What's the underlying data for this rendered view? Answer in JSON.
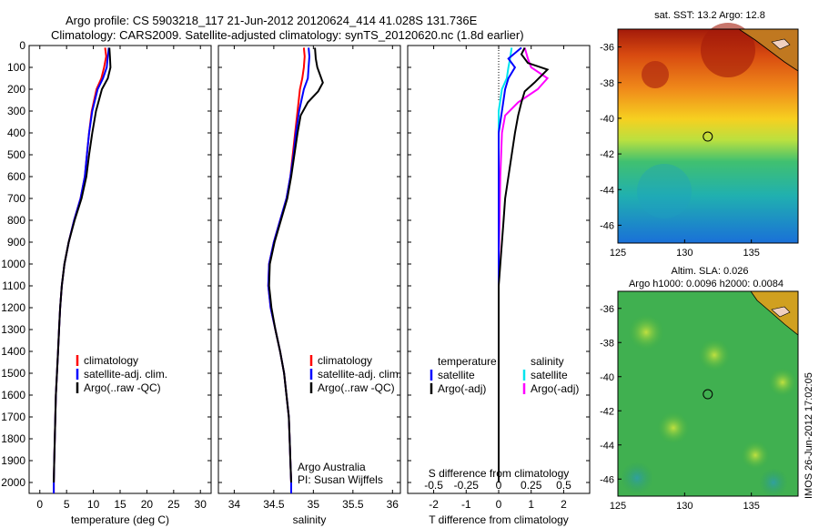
{
  "title_line1": "Argo profile: CS 5903218_117 21-Jun-2012 20120624_414 41.028S 131.736E",
  "title_line2": "Climatology: CARS2009. Satellite-adjusted climatology: synTS_20120620.nc (1.8d earlier)",
  "credit": "Argo Australia",
  "pi": "PI: Susan Wijffels",
  "timestamp": "IMOS 26-Jun-2012 17:02:05",
  "colors": {
    "climatology": "#ff0000",
    "satellite": "#0000ff",
    "argo": "#000000",
    "s_satellite": "#00e5ee",
    "s_argo": "#ff00ff"
  },
  "depth_ticks": [
    0,
    100,
    200,
    300,
    400,
    500,
    600,
    700,
    800,
    900,
    1000,
    1100,
    1200,
    1300,
    1400,
    1500,
    1600,
    1700,
    1800,
    1900,
    2000
  ],
  "chart_data": [
    {
      "type": "line",
      "xlabel": "temperature (deg C)",
      "xlim": [
        -2,
        32
      ],
      "ylim": [
        2050,
        0
      ],
      "x_ticks": [
        "0",
        "5",
        "10",
        "15",
        "20",
        "25",
        "30"
      ],
      "x_tick_values": [
        0,
        5,
        10,
        15,
        20,
        25,
        30
      ],
      "legend": [
        {
          "label": "climatology",
          "color": "#ff0000"
        },
        {
          "label": "satellite-adj. clim.",
          "color": "#0000ff"
        },
        {
          "label": "Argo(..raw -QC)",
          "color": "#000000"
        }
      ],
      "series": [
        {
          "name": "climatology",
          "color": "#ff0000",
          "points": [
            [
              12.2,
              10
            ],
            [
              12.4,
              50
            ],
            [
              12.0,
              100
            ],
            [
              11.5,
              150
            ],
            [
              10.6,
              200
            ],
            [
              9.7,
              300
            ],
            [
              9.2,
              400
            ],
            [
              8.8,
              500
            ],
            [
              8.4,
              600
            ],
            [
              7.6,
              700
            ],
            [
              6.4,
              800
            ],
            [
              5.4,
              900
            ],
            [
              4.6,
              1000
            ],
            [
              4.1,
              1100
            ],
            [
              3.8,
              1200
            ],
            [
              3.6,
              1300
            ],
            [
              3.4,
              1400
            ],
            [
              3.2,
              1500
            ],
            [
              3.0,
              1600
            ],
            [
              2.9,
              1700
            ],
            [
              2.8,
              1800
            ],
            [
              2.7,
              1900
            ],
            [
              2.6,
              2000
            ],
            [
              2.6,
              2050
            ]
          ]
        },
        {
          "name": "satellite-adj. clim.",
          "color": "#0000ff",
          "points": [
            [
              12.9,
              10
            ],
            [
              12.7,
              50
            ],
            [
              12.5,
              100
            ],
            [
              11.8,
              150
            ],
            [
              10.8,
              200
            ],
            [
              9.8,
              300
            ],
            [
              9.2,
              400
            ],
            [
              8.8,
              500
            ],
            [
              8.4,
              600
            ],
            [
              7.6,
              700
            ],
            [
              6.4,
              800
            ],
            [
              5.4,
              900
            ],
            [
              4.6,
              1000
            ],
            [
              4.1,
              1100
            ],
            [
              3.8,
              1200
            ],
            [
              3.6,
              1300
            ],
            [
              3.4,
              1400
            ],
            [
              3.2,
              1500
            ],
            [
              3.0,
              1600
            ],
            [
              2.9,
              1700
            ],
            [
              2.8,
              1800
            ],
            [
              2.7,
              1900
            ],
            [
              2.6,
              2000
            ],
            [
              2.6,
              2050
            ]
          ]
        },
        {
          "name": "Argo(..raw -QC)",
          "color": "#000000",
          "points": [
            [
              13.0,
              10
            ],
            [
              13.1,
              50
            ],
            [
              13.2,
              100
            ],
            [
              12.7,
              150
            ],
            [
              11.6,
              200
            ],
            [
              10.5,
              300
            ],
            [
              9.8,
              400
            ],
            [
              9.2,
              500
            ],
            [
              8.7,
              600
            ],
            [
              7.8,
              700
            ],
            [
              6.5,
              800
            ],
            [
              5.4,
              900
            ],
            [
              4.6,
              1000
            ],
            [
              4.1,
              1100
            ],
            [
              3.8,
              1200
            ],
            [
              3.6,
              1300
            ],
            [
              3.4,
              1400
            ],
            [
              3.2,
              1500
            ],
            [
              3.0,
              1600
            ],
            [
              2.9,
              1700
            ],
            [
              2.8,
              1800
            ],
            [
              2.7,
              1900
            ],
            [
              2.6,
              2000
            ]
          ]
        }
      ]
    },
    {
      "type": "line",
      "xlabel": "salinity",
      "xlim": [
        33.8,
        36.1
      ],
      "ylim": [
        2050,
        0
      ],
      "x_ticks": [
        "34",
        "34.5",
        "35",
        "35.5",
        "36"
      ],
      "x_tick_values": [
        34,
        34.5,
        35,
        35.5,
        36
      ],
      "legend": [
        {
          "label": "climatology",
          "color": "#ff0000"
        },
        {
          "label": "satellite-adj. clim.",
          "color": "#0000ff"
        },
        {
          "label": "Argo(..raw -QC)",
          "color": "#000000"
        }
      ],
      "series": [
        {
          "name": "climatology",
          "color": "#ff0000",
          "points": [
            [
              34.88,
              10
            ],
            [
              34.89,
              50
            ],
            [
              34.88,
              100
            ],
            [
              34.86,
              150
            ],
            [
              34.83,
              200
            ],
            [
              34.8,
              300
            ],
            [
              34.77,
              400
            ],
            [
              34.74,
              500
            ],
            [
              34.71,
              600
            ],
            [
              34.66,
              700
            ],
            [
              34.58,
              800
            ],
            [
              34.5,
              900
            ],
            [
              34.44,
              1000
            ],
            [
              34.43,
              1100
            ],
            [
              34.46,
              1200
            ],
            [
              34.52,
              1300
            ],
            [
              34.58,
              1400
            ],
            [
              34.63,
              1500
            ],
            [
              34.66,
              1600
            ],
            [
              34.69,
              1700
            ],
            [
              34.7,
              1800
            ],
            [
              34.71,
              1900
            ],
            [
              34.72,
              2000
            ],
            [
              34.72,
              2050
            ]
          ]
        },
        {
          "name": "satellite-adj. clim.",
          "color": "#0000ff",
          "points": [
            [
              34.94,
              10
            ],
            [
              34.95,
              50
            ],
            [
              34.94,
              100
            ],
            [
              34.93,
              150
            ],
            [
              34.88,
              200
            ],
            [
              34.82,
              300
            ],
            [
              34.78,
              400
            ],
            [
              34.75,
              500
            ],
            [
              34.71,
              600
            ],
            [
              34.66,
              700
            ],
            [
              34.58,
              800
            ],
            [
              34.5,
              900
            ],
            [
              34.44,
              1000
            ],
            [
              34.43,
              1100
            ],
            [
              34.46,
              1200
            ],
            [
              34.52,
              1300
            ],
            [
              34.58,
              1400
            ],
            [
              34.63,
              1500
            ],
            [
              34.66,
              1600
            ],
            [
              34.69,
              1700
            ],
            [
              34.7,
              1800
            ],
            [
              34.71,
              1900
            ],
            [
              34.72,
              2000
            ],
            [
              34.72,
              2050
            ]
          ]
        },
        {
          "name": "Argo(..raw -QC)",
          "color": "#000000",
          "points": [
            [
              35.02,
              10
            ],
            [
              35.03,
              60
            ],
            [
              35.05,
              100
            ],
            [
              35.12,
              170
            ],
            [
              35.06,
              210
            ],
            [
              34.93,
              260
            ],
            [
              34.84,
              320
            ],
            [
              34.8,
              400
            ],
            [
              34.76,
              500
            ],
            [
              34.72,
              600
            ],
            [
              34.67,
              700
            ],
            [
              34.59,
              800
            ],
            [
              34.51,
              900
            ],
            [
              34.45,
              1000
            ],
            [
              34.44,
              1100
            ],
            [
              34.47,
              1200
            ],
            [
              34.52,
              1300
            ],
            [
              34.58,
              1400
            ],
            [
              34.63,
              1500
            ],
            [
              34.66,
              1600
            ],
            [
              34.69,
              1700
            ],
            [
              34.7,
              1800
            ],
            [
              34.71,
              1900
            ],
            [
              34.72,
              2000
            ]
          ]
        }
      ]
    },
    {
      "type": "line",
      "xlabel": "T difference from climatology",
      "xlabel_top": "S difference from climatology",
      "xlim": [
        -2.8,
        2.8
      ],
      "ylim": [
        2050,
        0
      ],
      "x_ticks": [
        "-2",
        "-1",
        "0",
        "1",
        "2"
      ],
      "x_tick_values": [
        -2,
        -1,
        0,
        1,
        2
      ],
      "x_ticks_top": [
        "-0.5",
        "-0.25",
        "0",
        "0.25",
        "0.5"
      ],
      "legend_temperature_title": "temperature",
      "legend_salinity_title": "salinity",
      "legend": [
        {
          "label": "satellite",
          "color": "#0000ff",
          "group": "temperature"
        },
        {
          "label": "Argo(-adj)",
          "color": "#000000",
          "group": "temperature"
        },
        {
          "label": "satellite",
          "color": "#00e5ee",
          "group": "salinity"
        },
        {
          "label": "Argo(-adj)",
          "color": "#ff00ff",
          "group": "salinity"
        }
      ],
      "series": [
        {
          "name": "satellite",
          "color": "#00e5ee",
          "points": [
            [
              0.4,
              10
            ],
            [
              0.35,
              60
            ],
            [
              0.3,
              100
            ],
            [
              0.25,
              150
            ],
            [
              0.1,
              200
            ],
            [
              0.0,
              300
            ],
            [
              0.0,
              400
            ],
            [
              0.0,
              500
            ],
            [
              0.0,
              700
            ],
            [
              0.0,
              1000
            ],
            [
              0.0,
              1500
            ],
            [
              0.0,
              2000
            ]
          ]
        },
        {
          "name": "Argo(-adj)",
          "color": "#ff00ff",
          "points": [
            [
              0.8,
              10
            ],
            [
              0.9,
              60
            ],
            [
              1.0,
              100
            ],
            [
              1.5,
              150
            ],
            [
              1.2,
              200
            ],
            [
              0.6,
              260
            ],
            [
              0.2,
              320
            ],
            [
              0.1,
              400
            ],
            [
              0.05,
              600
            ],
            [
              0.0,
              1000
            ],
            [
              0.0,
              1500
            ],
            [
              0.0,
              2000
            ]
          ]
        },
        {
          "name": "satellite",
          "color": "#0000ff",
          "points": [
            [
              0.7,
              10
            ],
            [
              0.3,
              60
            ],
            [
              0.5,
              100
            ],
            [
              0.3,
              150
            ],
            [
              0.2,
              200
            ],
            [
              0.1,
              300
            ],
            [
              0.0,
              400
            ],
            [
              0.0,
              500
            ],
            [
              0.0,
              700
            ],
            [
              0.0,
              1000
            ],
            [
              0.0,
              1500
            ],
            [
              0.0,
              2000
            ]
          ]
        },
        {
          "name": "Argo(-adj)",
          "color": "#000000",
          "points": [
            [
              0.8,
              10
            ],
            [
              0.7,
              40
            ],
            [
              0.9,
              80
            ],
            [
              1.5,
              110
            ],
            [
              1.1,
              170
            ],
            [
              0.8,
              210
            ],
            [
              0.7,
              260
            ],
            [
              0.6,
              320
            ],
            [
              0.5,
              400
            ],
            [
              0.4,
              500
            ],
            [
              0.3,
              600
            ],
            [
              0.2,
              700
            ],
            [
              0.15,
              800
            ],
            [
              0.1,
              900
            ],
            [
              0.05,
              1000
            ],
            [
              0.0,
              1100
            ],
            [
              0.0,
              1200
            ],
            [
              0.0,
              1300
            ],
            [
              0.0,
              1400
            ],
            [
              0.0,
              1500
            ],
            [
              0.0,
              1700
            ],
            [
              0.0,
              2000
            ]
          ]
        }
      ]
    },
    {
      "type": "heatmap",
      "title": "sat. SST: 13.2 Argo: 12.8",
      "xlim": [
        125,
        138.5
      ],
      "ylim": [
        -47,
        -35
      ],
      "x_ticks": [
        "125",
        "130",
        "135"
      ],
      "x_tick_values": [
        125,
        130,
        135
      ],
      "y_ticks": [
        "-36",
        "-38",
        "-40",
        "-42",
        "-44",
        "-46"
      ],
      "y_tick_values": [
        -36,
        -38,
        -40,
        -42,
        -44,
        -46
      ],
      "marker": {
        "lon": 131.736,
        "lat": -41.028
      }
    },
    {
      "type": "heatmap",
      "title": "Altim. SLA: 0.026",
      "subtitle": "Argo h1000: 0.0096 h2000: 0.0084",
      "xlim": [
        125,
        138.5
      ],
      "ylim": [
        -47,
        -35
      ],
      "x_ticks": [
        "125",
        "130",
        "135"
      ],
      "x_tick_values": [
        125,
        130,
        135
      ],
      "y_ticks": [
        "-36",
        "-38",
        "-40",
        "-42",
        "-44",
        "-46"
      ],
      "y_tick_values": [
        -36,
        -38,
        -40,
        -42,
        -44,
        -46
      ],
      "marker": {
        "lon": 131.736,
        "lat": -41.028
      }
    }
  ]
}
